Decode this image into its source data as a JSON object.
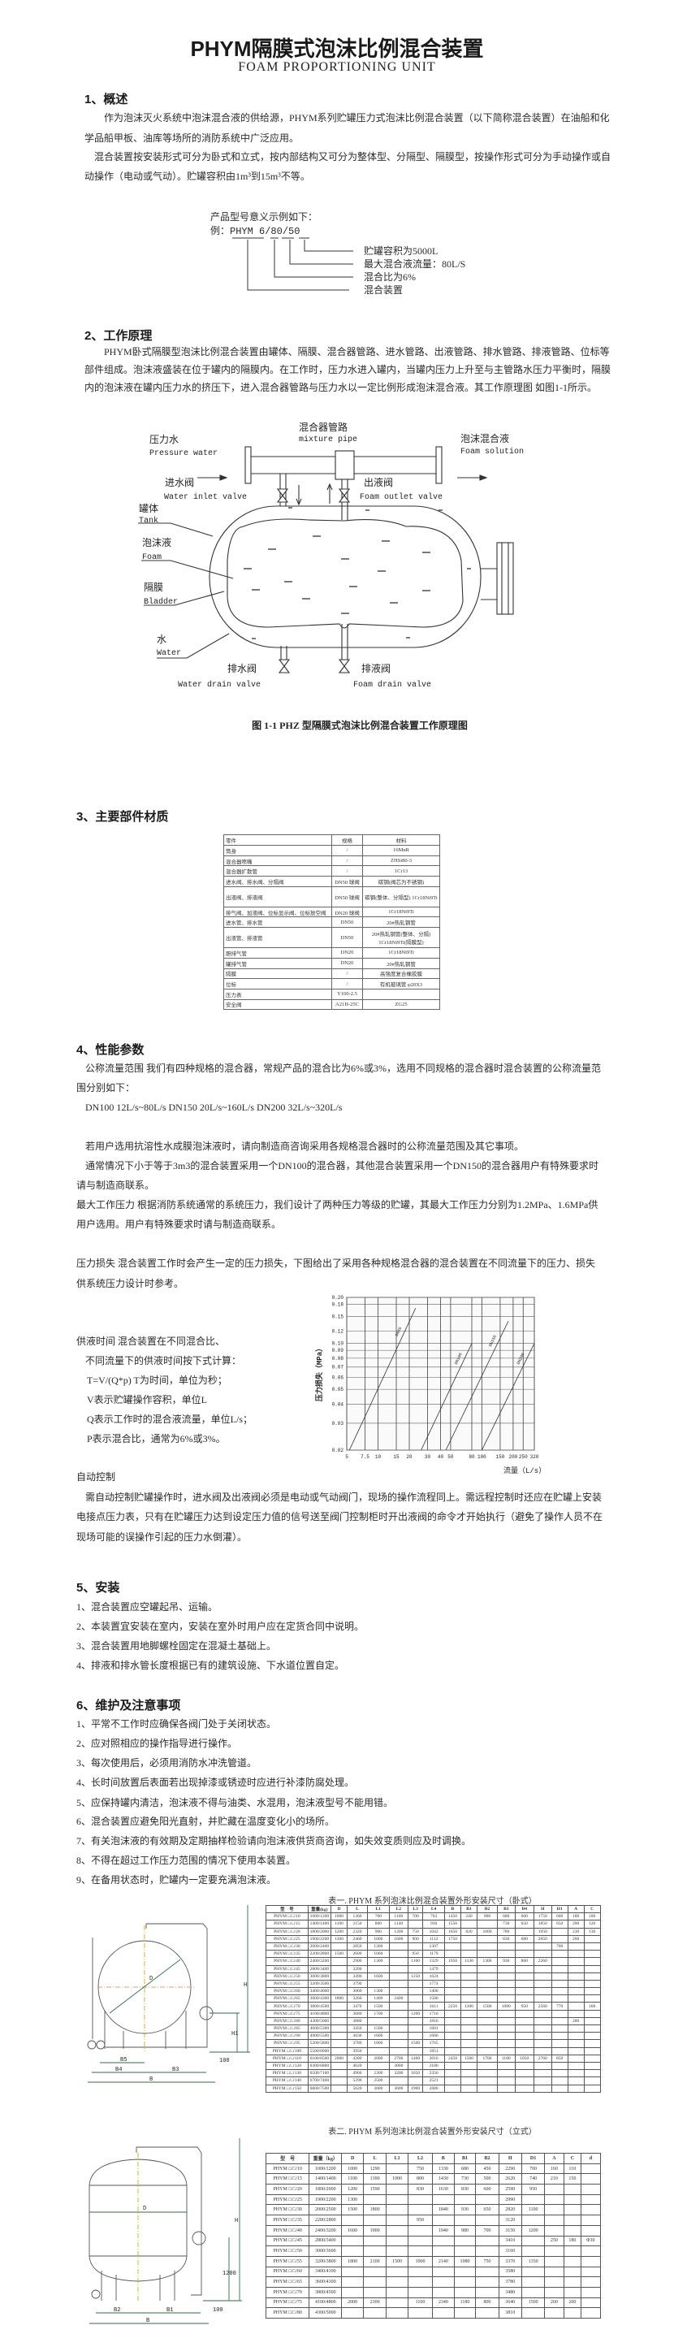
{
  "header": {
    "title": "PHYM隔膜式泡沫比例混合装置",
    "subtitle": "FOAM PROPORTIONING UNIT"
  },
  "s1": {
    "heading": "1、概述",
    "lines": [
      "作为泡沫灭火系统中泡沫混合液的供给源，PHYM系列贮罐压力式泡沫比例混合装置（以下简称混合装置）在油船和化",
      "学品船甲板、油库等场所的消防系统中广泛应用。",
      "混合装置按安装形式可分为卧式和立式，按内部结构又可分为整体型、分隔型、隔膜型，按操作形式可分为手动操作或自",
      "动操作（电动或气动）。贮罐容积由1m³到15m³不等。"
    ],
    "model": {
      "intro": "产品型号意义示例如下：",
      "prefix": "例：",
      "code": "PHYM 6/80/50",
      "labels": [
        "贮罐容积为5000L",
        "最大混合液流量：80L/S",
        "混合比为6%",
        "混合装置"
      ]
    }
  },
  "s2": {
    "heading": "2、工作原理",
    "lines": [
      "PHYM卧式隔膜型泡沫比例混合装置由罐体、隔膜、混合器管路、进水管路、出液管路、排水管路、排液管路、位标等",
      "部件组成。泡沫液盛装在位于罐内的隔膜内。在工作时，压力水进入罐内，当罐内压力上升至与主管路水压力平衡时，隔膜",
      "内的泡沫液在罐内压力水的挤压下，进入混合器管路与压力水以一定比例形成泡沫混合液。其工作原理图 如图1-1所示。"
    ],
    "diagram": {
      "pressure_water_cn": "压力水",
      "pressure_water_en": "Pressure water",
      "mixture_pipe_cn": "混合器管路",
      "mixture_pipe_en": "mixture pipe",
      "foam_solution_cn": "泡沫混合液",
      "foam_solution_en": "Foam solution",
      "inlet_valve_cn": "进水阀",
      "inlet_valve_en": "Water inlet valve",
      "outlet_valve_cn": "出液阀",
      "outlet_valve_en": "Foam outlet valve",
      "tank_cn": "罐体",
      "tank_en": "Tank",
      "foam_cn": "泡沫液",
      "foam_en": "Foam",
      "bladder_cn": "隔膜",
      "bladder_en": "Bladder",
      "water_cn": "水",
      "water_en": "Water",
      "water_drain_cn": "排水阀",
      "water_drain_en": "Water drain valve",
      "foam_drain_cn": "排液阀",
      "foam_drain_en": "Foam drain valve"
    },
    "caption": "图 1-1 PHZ 型隔膜式泡沫比例混合装置工作原理图"
  },
  "s3": {
    "heading": "3、主要部件材质",
    "table": {
      "headers": [
        "零件",
        "规格",
        "材料"
      ],
      "rows": [
        [
          "筒身",
          "/",
          "16MnR"
        ],
        [
          "混合器喷嘴",
          "/",
          "ZHSi80-3"
        ],
        [
          "混合器扩散管",
          "/",
          "1Cr13"
        ],
        [
          "进水阀、排水阀、分隔阀",
          "DN50 球阀",
          "碳钢(阀芯为不锈钢)"
        ],
        [
          "出液阀、排液阀",
          "DN50 球阀",
          "碳钢(整体、分隔型) 1Cr18Ni9Ti"
        ],
        [
          "排气阀、加液阀、位标显示阀、位标放空阀",
          "DN20 球阀",
          "1Cr18Ni9Ti"
        ],
        [
          "进水管、排水管",
          "DN50",
          "20#热轧钢管"
        ],
        [
          "出液管、排液管",
          "DN50",
          "20#热轧钢管(整体、分隔) 1Cr18Ni9Ti(隔膜型)"
        ],
        [
          "胆排气管",
          "DN20",
          "1Cr18Ni9Ti"
        ],
        [
          "罐排气管",
          "DN20",
          "20#热轧钢管"
        ],
        [
          "隔膜",
          "/",
          "高强度复合橡胶膜"
        ],
        [
          "位标",
          "/",
          "有机玻璃管 φ20X3"
        ],
        [
          "压力表",
          "Y100-2.5",
          ""
        ],
        [
          "安全阀",
          "A21H-25C",
          "ZG25"
        ]
      ]
    }
  },
  "s4": {
    "heading": "4、性能参数",
    "lines": [
      "公称流量范围  我们有四种规格的混合器，常规产品的混合比为6%或3%，选用不同规格的混合器时混合装置的公称流量范",
      "围分别如下：",
      "DN100  12L/s~80L/s   DN150  20L/s~160L/s   DN200  32L/s~320L/s",
      "若用户选用抗溶性水成膜泡沫液时，请向制造商咨询采用各规格混合器时的公称流量范围及其它事项。",
      "通常情况下小于等于3m3的混合装置采用一个DN100的混合器，其他混合装置采用一个DN150的混合器用户有特殊要求时",
      "请与制造商联系。",
      "最大工作压力  根据消防系统通常的系统压力，我们设计了两种压力等级的贮罐，其最大工作压力分别为1.2MPa、1.6MPa供",
      "用户选用。用户有特殊要求时请与制造商联系。",
      "压力损失  混合装置工作时会产生一定的压力损失，下图给出了采用各种规格混合器的混合装置在不同流量下的压力、损失",
      "供系统压力设计时参考。"
    ],
    "supply_lines": [
      "供液时间  混合装置在不同混合比、",
      "不同流量下的供液时间按下式计算：",
      "T=V/(Q*p)     T为时间，单位为秒；",
      "V表示贮罐操作容积，单位L",
      "Q表示工作时的混合液流量，单位L/s；",
      "P表示混合比，通常为6%或3%。"
    ],
    "auto_heading": "自动控制",
    "auto_lines": [
      "需自动控制贮罐操作时，进水阀及出液阀必须是电动或气动阀门，现场的操作流程同上。需远程控制时还应在贮罐上安装",
      "电接点压力表，只有在贮罐压力达到设定压力值的信号送至阀门控制柜时开出液阀的命令才开始执行（避免了操作人员不在",
      "现场可能的误操作引起的压力水倒灌）。"
    ]
  },
  "chart_data": {
    "type": "line",
    "xlabel": "流量（L/s）",
    "ylabel": "压力损失（MPa）",
    "x_scale": "log",
    "y_scale": "log",
    "xlim": [
      5,
      320
    ],
    "ylim": [
      0.02,
      0.2
    ],
    "grid": true,
    "x_ticks": [
      5,
      7.5,
      10,
      15,
      20,
      30,
      40,
      50,
      80,
      100,
      150,
      200,
      250,
      320
    ],
    "x_tick_labels": [
      "5",
      "7.5",
      "10",
      "15",
      "20",
      "30",
      "40",
      "50",
      "80",
      "100",
      "150",
      "200",
      "250",
      "320"
    ],
    "y_ticks": [
      0.02,
      0.03,
      0.04,
      0.05,
      0.06,
      0.07,
      0.08,
      0.09,
      0.1,
      0.12,
      0.15,
      0.18,
      0.2
    ],
    "y_tick_labels": [
      "0.02",
      "0.03",
      "0.04",
      "0.05",
      "0.06",
      "0.07",
      "0.08",
      "0.09",
      "0.10",
      "0.12",
      "0.15",
      "0.18",
      "0.20"
    ],
    "series": [
      {
        "name": "DN65",
        "points": [
          [
            5.3,
            0.02
          ],
          [
            23,
            0.17
          ]
        ]
      },
      {
        "name": "DN100",
        "points": [
          [
            26,
            0.02
          ],
          [
            80,
            0.1
          ]
        ]
      },
      {
        "name": "DN150",
        "points": [
          [
            45,
            0.02
          ],
          [
            180,
            0.14
          ]
        ]
      },
      {
        "name": "DN200",
        "points": [
          [
            100,
            0.02
          ],
          [
            320,
            0.1
          ]
        ]
      }
    ]
  },
  "s5": {
    "heading": "5、安装",
    "items": [
      "1、混合装置应空罐起吊、运输。",
      "2、本装置宜安装在室内，安装在室外时用户应在定货合同中说明。",
      "3、混合装置用地脚螺栓固定在混凝土基础上。",
      "4、排液和排水管长度根据已有的建筑设施、下水道位置自定。"
    ]
  },
  "s6": {
    "heading": "6、维护及注意事项",
    "items": [
      "1、平常不工作时应确保各阀门处于关闭状态。",
      "2、应对照相应的操作指导进行操作。",
      "3、每次使用后，必须用消防水冲洗管道。",
      "4、长时间放置后表面若出现掉漆或锈迹时应进行补漆防腐处理。",
      "5、应保持罐内清洁，泡沫液不得与油类、水混用，泡沫液型号不能用错。",
      "6、混合装置应避免阳光直射，并贮藏在温度变化小的场所。",
      "7、有关泡沫液的有效期及定期抽样检验请向泡沫液供货商咨询，如失效变质则应及时调换。",
      "8、不得在超过工作压力范围的情况下使用本装置。",
      "9、在备用状态时，贮罐内一定要充满泡沫液。"
    ]
  },
  "drawings": {
    "horizontal_labels": [
      "D",
      "H",
      "H1",
      "100",
      "B5",
      "B4",
      "B3",
      "B"
    ],
    "vertical_labels": [
      "D",
      "H",
      "1200",
      "100",
      "B2",
      "B1",
      "B"
    ]
  },
  "table1": {
    "title": "表一. PHYM 系列泡沫比例混合装置外形安装尺寸（卧式）",
    "headers": [
      "型　号",
      "重量(kg)",
      "D",
      "L",
      "L1",
      "L2",
      "L3",
      "L4",
      "B",
      "B1",
      "B2",
      "B3",
      "B4",
      "H",
      "H1",
      "A",
      "C"
    ],
    "rows": [
      [
        "PHYM □/□/10",
        "1000/1200",
        "1000",
        "1360",
        "700",
        "1100",
        "700",
        "763",
        "1450",
        "240",
        "900",
        "680",
        "600",
        "1750",
        "600",
        "180",
        "100"
      ],
      [
        "PHYM □/□/15",
        "1400/1400",
        "1100",
        "2150",
        "800",
        "1140",
        "",
        "930",
        "1550",
        "",
        "",
        "730",
        "650",
        "1850",
        "650",
        "200",
        "120"
      ],
      [
        "PHYM □/□/20",
        "1800/2000",
        "1200",
        "2320",
        "900",
        "1200",
        "750",
        "1042",
        "1650",
        "820",
        "1000",
        "780",
        "",
        "1950",
        "",
        "230",
        "130"
      ],
      [
        "PHYM □/□/25",
        "1900/2200",
        "1300",
        "2460",
        "1000",
        "1600",
        "900",
        "1112",
        "1750",
        "",
        "",
        "830",
        "680",
        "2050",
        "",
        "260",
        ""
      ],
      [
        "PHYM □/□/30",
        "2000/2400",
        "",
        "2850",
        "1300",
        "",
        "",
        "1307",
        "",
        "",
        "",
        "",
        "",
        "",
        "700",
        "",
        ""
      ],
      [
        "PHYM □/□/35",
        "2200/2800",
        "1500",
        "2600",
        "1060",
        "",
        "950",
        "1179",
        "",
        "",
        "",
        "",
        "",
        "",
        "",
        "",
        ""
      ],
      [
        "PHYM □/□/40",
        "2400/3200",
        "",
        "2900",
        "1300",
        "",
        "1100",
        "1329",
        "1950",
        "1130",
        "1300",
        "930",
        "800",
        "2260",
        "",
        "",
        ""
      ],
      [
        "PHYM □/□/45",
        "2800/3400",
        "",
        "3200",
        "",
        "",
        "",
        "1479",
        "",
        "",
        "",
        "",
        "",
        "",
        "",
        "",
        ""
      ],
      [
        "PHYM □/□/50",
        "3000/3800",
        "",
        "3490",
        "1600",
        "",
        "1250",
        "1624",
        "",
        "",
        "",
        "",
        "",
        "",
        "",
        "",
        ""
      ],
      [
        "PHYM □/□/55",
        "3200/3500",
        "",
        "3790",
        "",
        "",
        "",
        "1774",
        "",
        "",
        "",
        "",
        "",
        "",
        "",
        "",
        ""
      ],
      [
        "PHYM □/□/60",
        "3400/4000",
        "",
        "3060",
        "1300",
        "",
        "",
        "1406",
        "",
        "",
        "",
        "",
        "",
        "",
        "",
        "",
        ""
      ],
      [
        "PHYM □/□/65",
        "3600/4300",
        "1800",
        "3260",
        "1400",
        "2400",
        "",
        "1506",
        "",
        "",
        "",
        "",
        "",
        "",
        "",
        "",
        ""
      ],
      [
        "PHYM □/□/70",
        "3800/4500",
        "",
        "3470",
        "1500",
        "",
        "",
        "1611",
        "2250",
        "1300",
        "1500",
        "1080",
        "950",
        "2560",
        "770",
        "",
        "160"
      ],
      [
        "PHYM □/□/75",
        "4100/4800",
        "",
        "3680",
        "1700",
        "",
        "1200",
        "1716",
        "",
        "",
        "",
        "",
        "",
        "",
        "",
        "",
        ""
      ],
      [
        "PHYM □/□/80",
        "4300/5000",
        "",
        "3880",
        "",
        "",
        "",
        "1816",
        "",
        "",
        "",
        "",
        "",
        "",
        "",
        "280",
        ""
      ],
      [
        "PHYM □/□/85",
        "4600/5300",
        "",
        "3450",
        "1500",
        "",
        "",
        "1601",
        "",
        "",
        "",
        "",
        "",
        "",
        "",
        "",
        ""
      ],
      [
        "PHYM □/□/90",
        "4900/5500",
        "",
        "3630",
        "1600",
        "",
        "",
        "1686",
        "",
        "",
        "",
        "",
        "",
        "",
        "",
        "",
        ""
      ],
      [
        "PHYM □/□/95",
        "5200/5800",
        "",
        "3780",
        "1800",
        "",
        "1500",
        "1765",
        "",
        "",
        "",
        "",
        "",
        "",
        "",
        "",
        ""
      ],
      [
        "PHYM □/□/100",
        "5500/6000",
        "",
        "3950",
        "",
        "",
        "",
        "1851",
        "",
        "",
        "",
        "",
        "",
        "",
        "",
        "",
        ""
      ],
      [
        "PHYM □/□/110",
        "6100/6500",
        "2000",
        "4280",
        "2000",
        "2700",
        "1400",
        "2016",
        "2450",
        "1500",
        "1700",
        "1180",
        "1050",
        "2760",
        "850",
        "",
        ""
      ],
      [
        "PHYM □/□/120",
        "6300/6800",
        "",
        "4620",
        "",
        "3000",
        "",
        "2186",
        "",
        "",
        "",
        "",
        "",
        "",
        "",
        "",
        ""
      ],
      [
        "PHYM □/□/130",
        "6500/7100",
        "",
        "4960",
        "2300",
        "3200",
        "1650",
        "2356",
        "",
        "",
        "",
        "",
        "",
        "",
        "",
        "",
        ""
      ],
      [
        "PHYM □/□/140",
        "6700/7400",
        "",
        "5290",
        "2500",
        "",
        "",
        "2521",
        "",
        "",
        "",
        "",
        "",
        "",
        "",
        "",
        ""
      ],
      [
        "PHYM □/□/150",
        "6800/7500",
        "",
        "5620",
        "3000",
        "3600",
        "1900",
        "2686",
        "",
        "",
        "",
        "",
        "",
        "",
        "",
        "",
        ""
      ]
    ]
  },
  "table2": {
    "title": "表二. PHYM 系列泡沫比例混合装置外形安装尺寸（立式）",
    "headers": [
      "型　号",
      "重量（kg）",
      "D",
      "L",
      "L1",
      "L2",
      "B",
      "B1",
      "B2",
      "H",
      "D1",
      "A",
      "C",
      "d"
    ],
    "rows": [
      [
        "PHYM □/□/10",
        "1000/1200",
        "1000",
        "1290",
        "",
        "750",
        "1330",
        "680",
        "450",
        "2290",
        "700",
        "160",
        "110",
        ""
      ],
      [
        "PHYM □/□/15",
        "1400/1400",
        "1100",
        "1390",
        "1000",
        "800",
        "1430",
        "730",
        "500",
        "2620",
        "740",
        "210",
        "150",
        ""
      ],
      [
        "PHYM □/□/20",
        "1800/2000",
        "1200",
        "1590",
        "",
        "830",
        "1630",
        "830",
        "600",
        "2590",
        "950",
        "",
        "",
        ""
      ],
      [
        "PHYM □/□/25",
        "1900/2200",
        "1300",
        "",
        "",
        "",
        "",
        "",
        "",
        "2990",
        "",
        "",
        "",
        ""
      ],
      [
        "PHYM □/□/30",
        "2000/2500",
        "1500",
        "1800",
        "",
        "",
        "1840",
        "930",
        "650",
        "2820",
        "1100",
        "",
        "",
        ""
      ],
      [
        "PHYM □/□/35",
        "2200/2800",
        "",
        "",
        "",
        "950",
        "",
        "",
        "",
        "3120",
        "",
        "",
        "",
        ""
      ],
      [
        "PHYM □/□/40",
        "2400/3200",
        "1600",
        "1900",
        "",
        "",
        "1940",
        "980",
        "700",
        "3150",
        "1200",
        "",
        "",
        ""
      ],
      [
        "PHYM □/□/45",
        "2800/3400",
        "",
        "",
        "",
        "",
        "",
        "",
        "",
        "3410",
        "",
        "250",
        "180",
        "Φ30"
      ],
      [
        "PHYM □/□/50",
        "3000/3600",
        "",
        "",
        "",
        "",
        "",
        "",
        "",
        "3160",
        "",
        "",
        "",
        ""
      ],
      [
        "PHYM □/□/55",
        "3200/3800",
        "1800",
        "2100",
        "1500",
        "1000",
        "2140",
        "1080",
        "750",
        "3370",
        "1350",
        "",
        "",
        ""
      ],
      [
        "PHYM □/□/60",
        "3400/4100",
        "",
        "",
        "",
        "",
        "",
        "",
        "",
        "3580",
        "",
        "",
        "",
        ""
      ],
      [
        "PHYM □/□/65",
        "3600/4300",
        "",
        "",
        "",
        "",
        "",
        "",
        "",
        "3780",
        "",
        "",
        "",
        ""
      ],
      [
        "PHYM □/□/70",
        "3800/4500",
        "",
        "",
        "",
        "",
        "",
        "",
        "",
        "3480",
        "",
        "",
        "",
        ""
      ],
      [
        "PHYM □/□/75",
        "4100/4800",
        "2000",
        "2300",
        "",
        "1100",
        "2340",
        "1180",
        "800",
        "3640",
        "1500",
        "260",
        "200",
        ""
      ],
      [
        "PHYM □/□/80",
        "4300/5000",
        "",
        "",
        "",
        "",
        "",
        "",
        "",
        "3810",
        "",
        "",
        "",
        ""
      ]
    ]
  }
}
